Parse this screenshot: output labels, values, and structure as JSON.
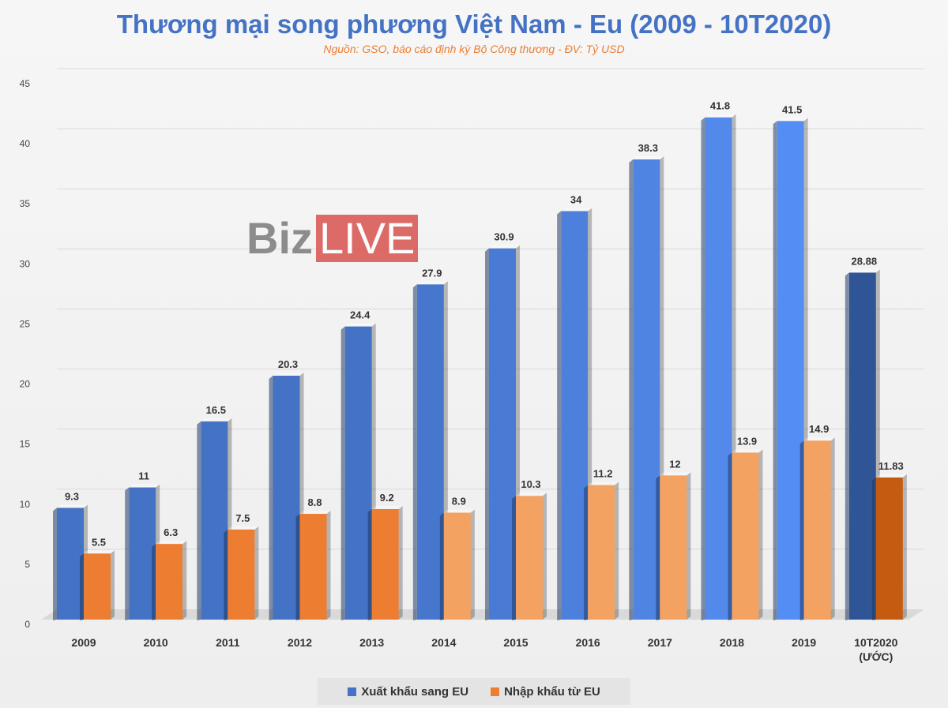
{
  "chart_data": {
    "type": "bar",
    "title": "Thương mại song phương Việt Nam - Eu (2009 - 10T2020)",
    "subtitle": "Nguồn: GSO, báo cáo định kỳ Bộ Công thương  - ĐV: Tỷ USD",
    "categories": [
      "2009",
      "2010",
      "2011",
      "2012",
      "2013",
      "2014",
      "2015",
      "2016",
      "2017",
      "2018",
      "2019",
      "10T2020"
    ],
    "category_sublabels": [
      "",
      "",
      "",
      "",
      "",
      "",
      "",
      "",
      "",
      "",
      "",
      "(ƯỚC)"
    ],
    "series": [
      {
        "name": "Xuất khẩu sang EU",
        "color": "#4472C4",
        "values": [
          9.3,
          11,
          16.5,
          20.3,
          24.4,
          27.9,
          30.9,
          34,
          38.3,
          41.8,
          41.5,
          28.88
        ]
      },
      {
        "name": "Nhập khẩu từ EU",
        "color": "#ED7D31",
        "values": [
          5.5,
          6.3,
          7.5,
          8.8,
          9.2,
          8.9,
          10.3,
          11.2,
          12,
          13.9,
          14.9,
          11.83
        ]
      }
    ],
    "ylim": [
      0,
      45
    ],
    "yticks": [
      0,
      5,
      10,
      15,
      20,
      25,
      30,
      35,
      40,
      45
    ],
    "grid": true,
    "legend_position": "bottom"
  },
  "watermark": {
    "part1": "Biz",
    "part2": "LIVE"
  }
}
